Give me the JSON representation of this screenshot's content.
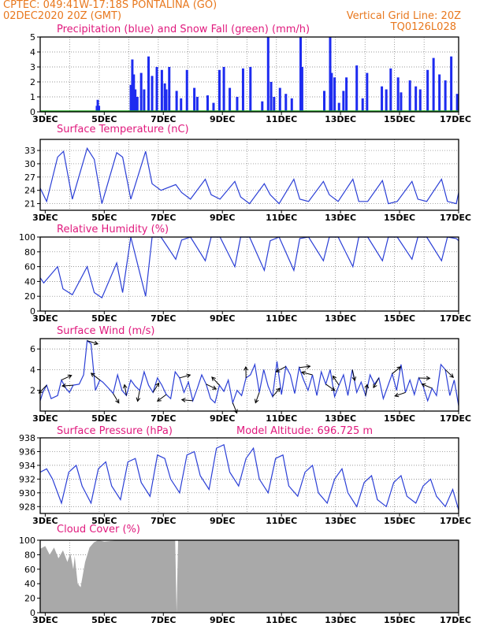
{
  "header": {
    "line1_left": "CPTEC:   049:41W-17:18S   PONTALINA (GO)",
    "line2_left": "02DEC2020 20Z (GMT)",
    "line2_right": "Vertical Grid Line: 20Z",
    "line3_right": "TQ0126L028"
  },
  "colors": {
    "header": "#e8781e",
    "panel_title": "#e0197d",
    "precip": "#1d2bf0",
    "snow": "#1aa31a",
    "line": "#2b3fd6",
    "cloud": "#a9a9a9"
  },
  "x_axis": {
    "ticks": [
      "3DEC",
      "5DEC",
      "7DEC",
      "9DEC",
      "11DEC",
      "13DEC",
      "15DEC",
      "17DEC"
    ],
    "tick_days": [
      3,
      5,
      7,
      9,
      11,
      13,
      15,
      17
    ],
    "start_day": 2.83,
    "end_day": 17.0
  },
  "chart_data": [
    {
      "type": "bar",
      "title": "Precipitation (blue) and Snow Fall (green) (mm/h)",
      "ylim": [
        0,
        5
      ],
      "yticks": [
        "0",
        "1",
        "2",
        "3",
        "4",
        "5"
      ],
      "grid": true,
      "series": [
        {
          "name": "Precipitation",
          "x": [
            4.75,
            4.78,
            4.82,
            5.9,
            5.95,
            6.0,
            6.05,
            6.12,
            6.25,
            6.35,
            6.5,
            6.62,
            6.78,
            6.95,
            7.05,
            7.1,
            7.2,
            7.45,
            7.6,
            7.8,
            8.05,
            8.15,
            8.5,
            8.7,
            8.9,
            9.05,
            9.25,
            9.5,
            9.7,
            9.95,
            10.35,
            10.55,
            10.65,
            10.75,
            10.95,
            11.15,
            11.35,
            11.65,
            11.7,
            12.45,
            12.65,
            12.7,
            12.8,
            12.95,
            13.1,
            13.2,
            13.55,
            13.75,
            13.9,
            14.4,
            14.55,
            14.7,
            14.95,
            15.05,
            15.35,
            15.55,
            15.7,
            15.95,
            16.15,
            16.35,
            16.55,
            16.75,
            16.95
          ],
          "values": [
            0.4,
            0.8,
            0.4,
            1.8,
            3.5,
            2.5,
            1.5,
            1.0,
            2.6,
            1.5,
            3.7,
            2.4,
            3.0,
            2.8,
            1.9,
            1.5,
            3.0,
            1.4,
            0.9,
            2.8,
            1.6,
            1.0,
            1.1,
            0.6,
            2.8,
            3.0,
            1.6,
            1.0,
            2.9,
            3.0,
            0.7,
            5.0,
            2.0,
            1.0,
            1.6,
            1.2,
            0.9,
            5.0,
            3.0,
            1.4,
            5.0,
            2.6,
            2.3,
            0.6,
            1.4,
            2.3,
            3.1,
            0.9,
            2.6,
            1.7,
            1.5,
            2.9,
            2.3,
            1.3,
            2.1,
            1.7,
            1.5,
            2.8,
            3.6,
            2.5,
            2.1,
            3.7,
            1.2
          ]
        },
        {
          "name": "Snow Fall",
          "x": [
            2.83,
            17.0
          ],
          "values": [
            0.05,
            0.05
          ]
        }
      ]
    },
    {
      "type": "line",
      "title": "Surface Temperature (nC)",
      "ylim": [
        19.5,
        35.5
      ],
      "yticks": [
        "21",
        "24",
        "27",
        "30",
        "33"
      ],
      "grid": true,
      "series": [
        {
          "name": "Temperature",
          "x": [
            2.83,
            3.05,
            3.42,
            3.62,
            3.92,
            4.42,
            4.66,
            4.92,
            5.42,
            5.62,
            5.9,
            6.4,
            6.62,
            6.92,
            7.42,
            7.62,
            7.92,
            8.42,
            8.62,
            8.92,
            9.42,
            9.62,
            9.92,
            10.42,
            10.62,
            10.92,
            11.42,
            11.62,
            11.92,
            12.42,
            12.62,
            12.92,
            13.42,
            13.62,
            13.92,
            14.42,
            14.62,
            14.92,
            15.42,
            15.62,
            15.92,
            16.42,
            16.62,
            16.92,
            17.0
          ],
          "values": [
            24.5,
            21.5,
            31.5,
            32.8,
            22.0,
            33.5,
            31.0,
            21.0,
            32.5,
            31.5,
            22.0,
            32.8,
            25.5,
            24.0,
            25.3,
            23.5,
            22.0,
            26.5,
            23.0,
            22.0,
            26.0,
            22.5,
            21.0,
            25.5,
            23.0,
            21.0,
            26.5,
            22.0,
            21.5,
            26.0,
            23.0,
            21.5,
            26.5,
            21.5,
            21.5,
            26.2,
            21.0,
            21.5,
            26.0,
            22.0,
            21.5,
            26.5,
            21.5,
            21.0,
            23.5
          ]
        }
      ]
    },
    {
      "type": "line",
      "title": "Relative Humidity (%)",
      "ylim": [
        0,
        100
      ],
      "yticks": [
        "0",
        "20",
        "40",
        "60",
        "80",
        "100"
      ],
      "grid": true,
      "series": [
        {
          "name": "Relative Humidity",
          "x": [
            2.83,
            2.95,
            3.42,
            3.6,
            3.92,
            4.42,
            4.66,
            4.92,
            5.42,
            5.62,
            5.9,
            6.4,
            6.62,
            6.92,
            7.42,
            7.62,
            7.92,
            8.42,
            8.62,
            8.92,
            9.42,
            9.62,
            9.92,
            10.42,
            10.62,
            10.92,
            11.42,
            11.62,
            11.92,
            12.42,
            12.62,
            12.92,
            13.42,
            13.62,
            13.92,
            14.42,
            14.62,
            14.92,
            15.42,
            15.62,
            15.92,
            16.42,
            16.62,
            16.92,
            17.0
          ],
          "values": [
            45.0,
            38.0,
            60.0,
            30.0,
            22.0,
            60.0,
            25.0,
            18.0,
            65.0,
            25.0,
            100.0,
            20.0,
            100.0,
            100.0,
            70.0,
            96.0,
            100.0,
            68.0,
            100.0,
            100.0,
            60.0,
            100.0,
            100.0,
            55.0,
            95.0,
            100.0,
            55.0,
            98.0,
            100.0,
            68.0,
            100.0,
            100.0,
            60.0,
            100.0,
            100.0,
            68.0,
            100.0,
            100.0,
            70.0,
            100.0,
            100.0,
            68.0,
            100.0,
            98.0,
            95.0
          ]
        }
      ]
    },
    {
      "type": "line",
      "title": "Surface Wind (m/s)",
      "ylim": [
        0,
        7
      ],
      "yticks": [
        "2",
        "4",
        "6"
      ],
      "grid": true,
      "series": [
        {
          "name": "Wind Speed",
          "x": [
            2.83,
            2.92,
            3.05,
            3.2,
            3.42,
            3.55,
            3.7,
            3.82,
            3.95,
            4.15,
            4.3,
            4.42,
            4.55,
            4.7,
            4.85,
            4.95,
            5.15,
            5.3,
            5.45,
            5.6,
            5.75,
            5.9,
            6.05,
            6.2,
            6.35,
            6.5,
            6.65,
            6.8,
            6.95,
            7.1,
            7.25,
            7.4,
            7.55,
            7.7,
            7.85,
            8.0,
            8.15,
            8.3,
            8.45,
            8.6,
            8.75,
            8.9,
            9.05,
            9.2,
            9.35,
            9.5,
            9.65,
            9.8,
            9.95,
            10.1,
            10.25,
            10.4,
            10.55,
            10.7,
            10.85,
            11.0,
            11.15,
            11.3,
            11.45,
            11.6,
            11.75,
            11.9,
            12.05,
            12.2,
            12.35,
            12.5,
            12.65,
            12.8,
            12.95,
            13.1,
            13.25,
            13.4,
            13.55,
            13.7,
            13.85,
            14.0,
            14.15,
            14.3,
            14.45,
            14.6,
            14.75,
            14.9,
            15.05,
            15.2,
            15.35,
            15.5,
            15.65,
            15.8,
            15.95,
            16.1,
            16.25,
            16.4,
            16.55,
            16.7,
            16.85,
            17.0
          ],
          "values": [
            1.0,
            1.8,
            2.5,
            1.2,
            1.5,
            3.0,
            2.2,
            1.8,
            2.5,
            2.6,
            3.5,
            6.8,
            6.5,
            2.0,
            3.0,
            2.8,
            2.2,
            1.7,
            3.5,
            2.0,
            1.5,
            3.0,
            2.4,
            2.0,
            3.8,
            2.5,
            1.8,
            3.2,
            2.5,
            1.6,
            1.2,
            3.8,
            3.2,
            1.8,
            2.8,
            1.0,
            2.2,
            3.5,
            2.6,
            1.2,
            0.8,
            2.5,
            1.9,
            3.0,
            0.8,
            2.0,
            1.5,
            3.2,
            3.5,
            4.5,
            1.8,
            4.0,
            2.4,
            1.4,
            4.8,
            1.6,
            4.3,
            3.5,
            1.7,
            4.2,
            3.0,
            2.0,
            3.5,
            1.5,
            3.8,
            2.6,
            4.0,
            1.4,
            2.5,
            3.5,
            1.5,
            4.0,
            1.8,
            2.8,
            1.5,
            3.5,
            2.6,
            3.2,
            1.2,
            2.4,
            3.6,
            2.0,
            4.5,
            1.8,
            3.0,
            1.6,
            3.2,
            2.4,
            1.0,
            2.2,
            1.5,
            4.5,
            4.0,
            1.5,
            3.0,
            0.5
          ]
        }
      ]
    },
    {
      "type": "line",
      "title": "Surface Pressure (hPa)",
      "subtitle": "Model Altitude: 696.725 m",
      "ylim": [
        927,
        938
      ],
      "yticks": [
        "928",
        "930",
        "932",
        "934",
        "936",
        "938"
      ],
      "grid": true,
      "series": [
        {
          "name": "Pressure",
          "x": [
            2.83,
            3.05,
            3.25,
            3.55,
            3.8,
            4.05,
            4.25,
            4.55,
            4.8,
            5.05,
            5.25,
            5.55,
            5.8,
            6.05,
            6.25,
            6.55,
            6.8,
            7.05,
            7.25,
            7.55,
            7.8,
            8.05,
            8.25,
            8.55,
            8.8,
            9.05,
            9.25,
            9.55,
            9.8,
            10.05,
            10.25,
            10.55,
            10.8,
            11.05,
            11.25,
            11.55,
            11.8,
            12.05,
            12.25,
            12.55,
            12.8,
            13.05,
            13.25,
            13.55,
            13.8,
            14.05,
            14.25,
            14.55,
            14.8,
            15.05,
            15.25,
            15.55,
            15.8,
            16.05,
            16.25,
            16.55,
            16.8,
            17.0
          ],
          "values": [
            933.0,
            933.5,
            932.0,
            928.5,
            933.0,
            934.0,
            931.0,
            928.5,
            933.5,
            934.5,
            931.0,
            929.0,
            934.5,
            935.0,
            931.5,
            929.5,
            935.5,
            935.0,
            932.0,
            930.0,
            935.5,
            936.0,
            932.5,
            930.5,
            936.5,
            937.0,
            933.0,
            931.0,
            935.0,
            936.5,
            932.0,
            930.0,
            935.0,
            935.5,
            931.0,
            929.5,
            933.0,
            934.0,
            930.0,
            928.5,
            932.0,
            933.5,
            930.0,
            928.0,
            931.5,
            932.5,
            929.0,
            928.0,
            931.5,
            932.5,
            929.5,
            928.5,
            931.0,
            932.0,
            929.5,
            928.0,
            930.5,
            927.5
          ]
        }
      ]
    },
    {
      "type": "area",
      "title": "Cloud Cover (%)",
      "ylim": [
        0,
        100
      ],
      "yticks": [
        "0",
        "20",
        "40",
        "60",
        "80",
        "100"
      ],
      "grid": true,
      "series": [
        {
          "name": "Cloud Cover",
          "x": [
            2.83,
            3.0,
            3.15,
            3.3,
            3.45,
            3.6,
            3.75,
            3.85,
            3.95,
            4.0,
            4.1,
            4.2,
            4.35,
            4.5,
            4.65,
            4.8,
            5.0,
            5.5,
            6.0,
            7.4,
            7.45,
            7.5,
            8.0,
            17.0
          ],
          "values": [
            88,
            92,
            80,
            90,
            75,
            86,
            70,
            82,
            60,
            78,
            40,
            35,
            70,
            90,
            97,
            100,
            98,
            100,
            100,
            100,
            0,
            100,
            100,
            100
          ]
        }
      ]
    }
  ]
}
